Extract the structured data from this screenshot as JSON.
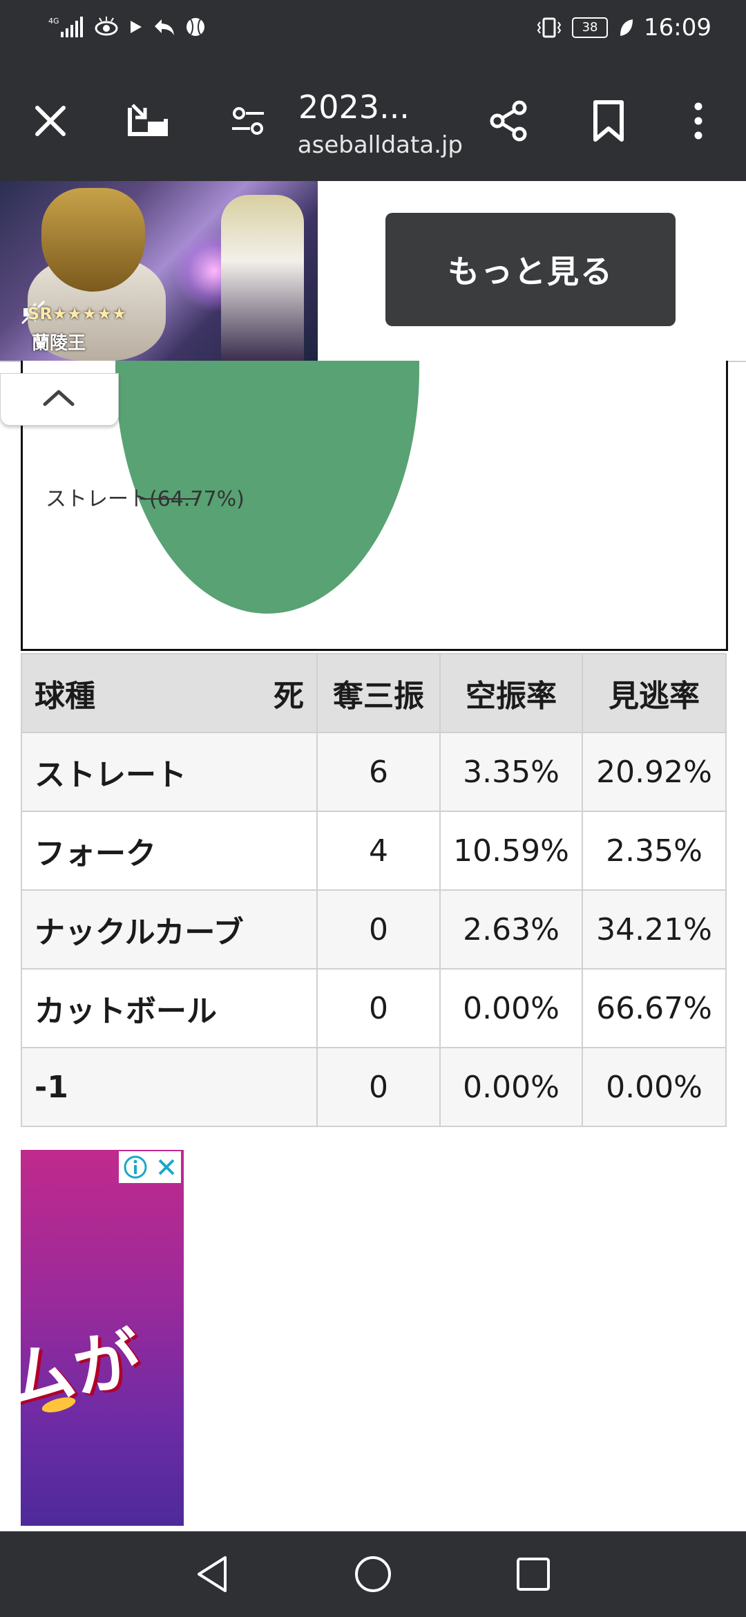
{
  "status_bar": {
    "network": "4G",
    "battery": "38",
    "time": "16:09"
  },
  "toolbar": {
    "title": "2023...",
    "url": "baseballdata.jp"
  },
  "ad_banner": {
    "rank": "SR★★★★★",
    "name": "蘭陵王",
    "more_label": "もっと見る"
  },
  "chart_data": {
    "type": "pie",
    "slices": [
      {
        "label": "ストレート",
        "value": 64.77,
        "color": "#58a274"
      }
    ],
    "labels": [
      "ストレート(64.77%)"
    ]
  },
  "table": {
    "headers": [
      "球種",
      "死",
      "奪三振",
      "空振率",
      "見逃率"
    ],
    "rows": [
      {
        "name": "ストレート",
        "strikeouts": "6",
        "whiff": "3.35%",
        "looking": "20.92%"
      },
      {
        "name": "フォーク",
        "strikeouts": "4",
        "whiff": "10.59%",
        "looking": "2.35%"
      },
      {
        "name": "ナックルカーブ",
        "strikeouts": "0",
        "whiff": "2.63%",
        "looking": "34.21%"
      },
      {
        "name": "カットボール",
        "strikeouts": "0",
        "whiff": "0.00%",
        "looking": "66.67%"
      },
      {
        "name": "-1",
        "strikeouts": "0",
        "whiff": "0.00%",
        "looking": "0.00%"
      }
    ]
  },
  "side_ad": {
    "text": "ムが"
  },
  "colors": {
    "bar": "#2f3033",
    "pie_green": "#58a274",
    "header_bg": "#e0e0e0"
  }
}
